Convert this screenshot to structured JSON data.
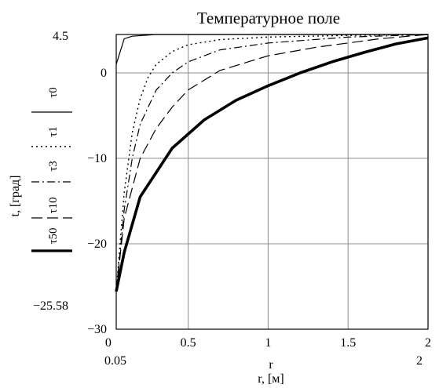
{
  "chart_data": {
    "type": "line",
    "title": "Температурное поле",
    "xlabel": "r, [м]",
    "ylabel": "t, [град]",
    "x_var_label": "r",
    "xlim": [
      0.05,
      2
    ],
    "ylim": [
      -30,
      4.5
    ],
    "xlim_labels": [
      "0.05",
      "2"
    ],
    "ylim_labels": [
      "4.5",
      "−25.58"
    ],
    "xticks": [
      0,
      0.5,
      1,
      1.5,
      2
    ],
    "xtick_labels": [
      "0",
      "0.5",
      "1",
      "1.5",
      "2"
    ],
    "yticks": [
      0,
      -10,
      -20,
      -30
    ],
    "ytick_labels": [
      "0",
      "−10",
      "−20",
      "−30"
    ],
    "grid": true,
    "legend_placement": "left, vertical along y axis",
    "series": [
      {
        "name": "τ0",
        "style": "solid-thin",
        "x": [
          0.05,
          0.1,
          0.15,
          0.3,
          0.5,
          1,
          1.5,
          2
        ],
        "y": [
          1,
          4,
          4.3,
          4.5,
          4.5,
          4.5,
          4.5,
          4.5
        ]
      },
      {
        "name": "τ1",
        "style": "dotted",
        "x": [
          0.05,
          0.1,
          0.15,
          0.2,
          0.25,
          0.3,
          0.4,
          0.5,
          0.7,
          1,
          1.5,
          2
        ],
        "y": [
          -25.58,
          -14,
          -7,
          -3,
          -0.5,
          1,
          2.5,
          3.3,
          3.9,
          4.2,
          4.4,
          4.5
        ]
      },
      {
        "name": "τ3",
        "style": "dashdot",
        "x": [
          0.05,
          0.1,
          0.15,
          0.2,
          0.3,
          0.4,
          0.5,
          0.7,
          1,
          1.5,
          2
        ],
        "y": [
          -25.58,
          -16,
          -10,
          -6,
          -2,
          0,
          1.3,
          2.7,
          3.5,
          4.2,
          4.5
        ]
      },
      {
        "name": "τ10",
        "style": "dashed-long",
        "x": [
          0.05,
          0.1,
          0.2,
          0.3,
          0.4,
          0.5,
          0.7,
          1,
          1.3,
          1.7,
          2
        ],
        "y": [
          -25.58,
          -17,
          -10,
          -6.5,
          -4,
          -2,
          0.3,
          2,
          3,
          4,
          4.5
        ]
      },
      {
        "name": "τ50",
        "style": "solid-thick",
        "x": [
          0.05,
          0.1,
          0.2,
          0.4,
          0.6,
          0.8,
          1,
          1.2,
          1.4,
          1.6,
          1.8,
          2
        ],
        "y": [
          -25.58,
          -21,
          -14.5,
          -8.8,
          -5.5,
          -3.2,
          -1.5,
          0,
          1.3,
          2.4,
          3.4,
          4.1
        ]
      }
    ]
  }
}
